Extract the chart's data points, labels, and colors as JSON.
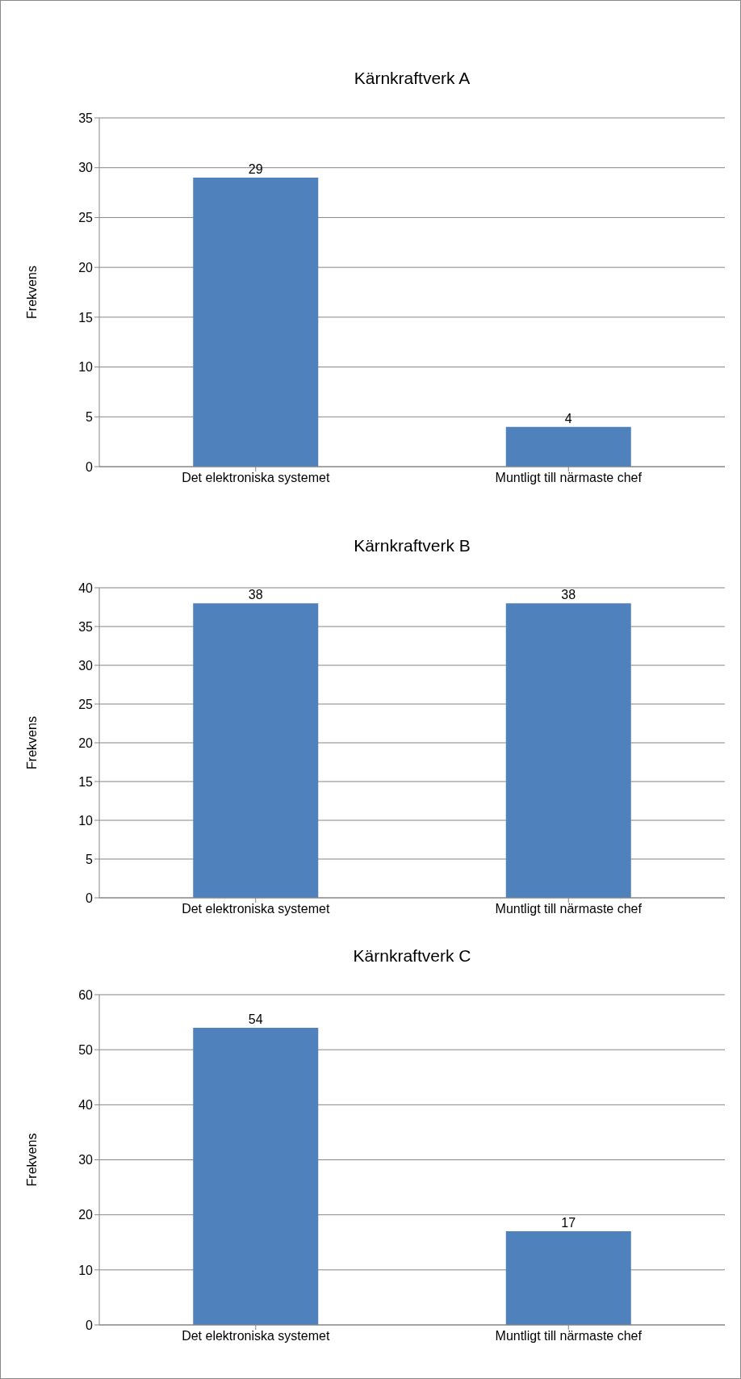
{
  "chart_data": [
    {
      "type": "bar",
      "title": "Kärnkraftverk A",
      "ylabel": "Frekvens",
      "categories": [
        "Det elektroniska systemet",
        "Muntligt till närmaste chef"
      ],
      "values": [
        29,
        4
      ],
      "color": "#4f81bd",
      "ylim": [
        0,
        35
      ],
      "yticks": [
        0,
        5,
        10,
        15,
        20,
        25,
        30,
        35
      ],
      "grid": "y",
      "data_labels": true
    },
    {
      "type": "bar",
      "title": "Kärnkraftverk B",
      "ylabel": "Frekvens",
      "categories": [
        "Det elektroniska systemet",
        "Muntligt till närmaste chef"
      ],
      "values": [
        38,
        38
      ],
      "color": "#4f81bd",
      "ylim": [
        0,
        40
      ],
      "yticks": [
        0,
        5,
        10,
        15,
        20,
        25,
        30,
        35,
        40
      ],
      "grid": "y",
      "data_labels": true
    },
    {
      "type": "bar",
      "title": "Kärnkraftverk C",
      "ylabel": "Frekvens",
      "categories": [
        "Det elektroniska systemet",
        "Muntligt till närmaste chef"
      ],
      "values": [
        54,
        17
      ],
      "color": "#4f81bd",
      "ylim": [
        0,
        60
      ],
      "yticks": [
        0,
        10,
        20,
        30,
        40,
        50,
        60
      ],
      "grid": "y",
      "data_labels": true
    }
  ]
}
